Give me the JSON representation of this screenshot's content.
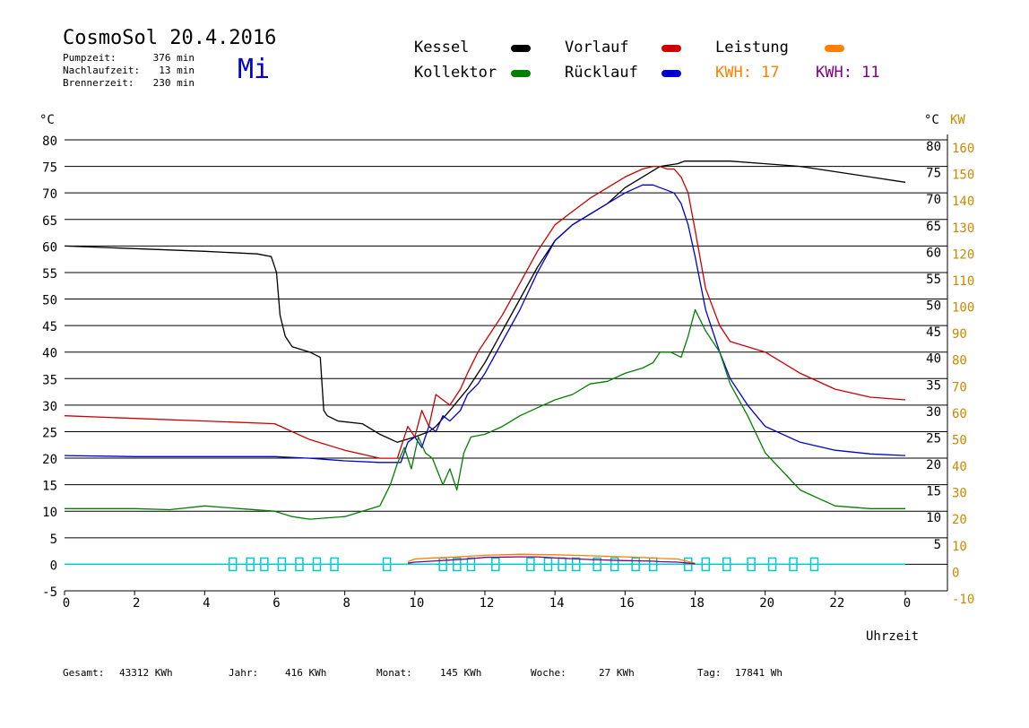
{
  "header": {
    "title": "CosmoSol 20.4.2016",
    "weekday": "Mi",
    "stats": [
      {
        "label": "Pumpzeit:",
        "value": "376 min"
      },
      {
        "label": "Nachlaufzeit:",
        "value": "13 min"
      },
      {
        "label": "Brennerzeit:",
        "value": "230 min"
      }
    ]
  },
  "legend": {
    "kessel": "Kessel",
    "kollektor": "Kollektor",
    "vorlauf": "Vorlauf",
    "ruecklauf": "Rücklauf",
    "leistung": "Leistung",
    "kwh1": "KWH: 17",
    "kwh2": "KWH: 11"
  },
  "footer": [
    {
      "label": "Gesamt:",
      "value": "43312 KWh"
    },
    {
      "label": "Jahr:",
      "value": "416 KWh"
    },
    {
      "label": "Monat:",
      "value": "145 KWh"
    },
    {
      "label": "Woche:",
      "value": "27 KWh"
    },
    {
      "label": "Tag:",
      "value": "17841 Wh"
    }
  ],
  "colors": {
    "kessel": "#000000",
    "kollektor": "#008000",
    "vorlauf": "#cc0000",
    "ruecklauf": "#0000cc",
    "leistung": "#ff8000",
    "kwh2": "#800080",
    "pump": "#00cccc",
    "kw_axis": "#cc8800"
  },
  "chart_data": {
    "type": "line",
    "xlabel": "Uhrzeit",
    "ylabel_left": "°C",
    "ylabel_right_c": "°C",
    "ylabel_right_kw": "KW",
    "xlim": [
      0,
      24
    ],
    "ylim": [
      -5,
      80
    ],
    "x_ticks": [
      "0",
      "2",
      "4",
      "6",
      "8",
      "10",
      "12",
      "14",
      "16",
      "18",
      "20",
      "22",
      "0"
    ],
    "y_ticks": [
      -5,
      0,
      5,
      10,
      15,
      20,
      25,
      30,
      35,
      40,
      45,
      50,
      55,
      60,
      65,
      70,
      75,
      80
    ],
    "right_c_ticks": [
      "5",
      "10",
      "15",
      "20",
      "25",
      "30",
      "35",
      "40",
      "45",
      "50",
      "55",
      "60",
      "65",
      "70",
      "75",
      "80"
    ],
    "right_kw_ticks": [
      "-10",
      "0",
      "10",
      "20",
      "30",
      "40",
      "50",
      "60",
      "70",
      "80",
      "90",
      "100",
      "110",
      "120",
      "130",
      "140",
      "150",
      "160"
    ],
    "grid": true,
    "series": [
      {
        "name": "Kessel",
        "key": "kessel",
        "x": [
          0,
          2,
          4,
          5.5,
          5.9,
          6.05,
          6.15,
          6.3,
          6.5,
          7,
          7.3,
          7.4,
          7.5,
          7.8,
          8.5,
          9,
          9.5,
          10,
          10.4,
          10.6,
          11,
          11.5,
          12,
          12.5,
          13,
          13.5,
          14,
          14.5,
          15,
          15.5,
          16,
          16.5,
          17,
          17.5,
          17.7,
          18,
          19,
          20,
          21,
          22,
          23,
          24
        ],
        "y": [
          60,
          59.5,
          59,
          58.5,
          58,
          55,
          47,
          43,
          41,
          40,
          39,
          29,
          28,
          27,
          26.5,
          24.5,
          23,
          24,
          25,
          26,
          29,
          33,
          38,
          44,
          50,
          56,
          61,
          64,
          66,
          68,
          71,
          73,
          75,
          75.5,
          76,
          76,
          76,
          75.5,
          75,
          74,
          73,
          72
        ]
      },
      {
        "name": "Vorlauf",
        "key": "vorlauf",
        "x": [
          0,
          2,
          4,
          6,
          6.5,
          7,
          8,
          9,
          9.5,
          9.8,
          10,
          10.2,
          10.4,
          10.6,
          10.8,
          11,
          11.3,
          11.5,
          11.8,
          12,
          12.5,
          13,
          13.5,
          14,
          14.5,
          15,
          15.5,
          16,
          16.5,
          16.8,
          17,
          17.2,
          17.4,
          17.6,
          17.8,
          18,
          18.3,
          18.7,
          19,
          20,
          21,
          22,
          23,
          24
        ],
        "y": [
          28,
          27.5,
          27,
          26.5,
          25,
          23.5,
          21.5,
          20,
          20,
          26,
          24,
          29,
          26,
          32,
          31,
          30,
          33,
          36,
          40,
          42,
          47,
          53,
          59,
          64,
          66.5,
          69,
          71,
          73,
          74.5,
          75,
          75,
          74.5,
          74.5,
          73,
          70,
          63,
          52,
          45,
          42,
          40,
          36,
          33,
          31.5,
          31
        ]
      },
      {
        "name": "Rücklauf",
        "key": "ruecklauf",
        "x": [
          0,
          2,
          4,
          6,
          7,
          8,
          9,
          9.6,
          9.8,
          10,
          10.2,
          10.4,
          10.6,
          10.8,
          11,
          11.3,
          11.5,
          11.8,
          12,
          12.5,
          13,
          13.5,
          14,
          14.5,
          15,
          15.5,
          16,
          16.5,
          16.8,
          17,
          17.2,
          17.4,
          17.6,
          17.8,
          18,
          18.3,
          18.7,
          19,
          19.5,
          20,
          21,
          22,
          23,
          24
        ],
        "y": [
          20.5,
          20.3,
          20.3,
          20.3,
          20,
          19.5,
          19.2,
          19.2,
          23,
          24,
          22,
          26,
          25,
          28,
          27,
          29,
          32,
          34,
          36,
          42,
          48,
          55,
          61,
          64,
          66,
          68,
          70,
          71.5,
          71.5,
          71,
          70.5,
          70,
          68,
          64,
          58,
          48,
          40,
          35,
          30,
          26,
          23,
          21.5,
          20.8,
          20.5
        ]
      },
      {
        "name": "Kollektor",
        "key": "kollektor",
        "x": [
          0,
          2,
          3,
          4,
          5,
          6,
          6.5,
          7,
          8,
          8.5,
          9,
          9.3,
          9.5,
          9.7,
          9.9,
          10.1,
          10.3,
          10.5,
          10.8,
          11,
          11.2,
          11.4,
          11.6,
          12,
          12.5,
          13,
          13.5,
          14,
          14.5,
          15,
          15.5,
          16,
          16.5,
          16.8,
          17,
          17.3,
          17.6,
          17.8,
          18,
          18.3,
          18.7,
          19,
          19.5,
          20,
          21,
          22,
          23,
          24
        ],
        "y": [
          10.5,
          10.5,
          10.3,
          11,
          10.5,
          10,
          9,
          8.5,
          9,
          10,
          11,
          15,
          19,
          22,
          18,
          24,
          21,
          20,
          15,
          18,
          14,
          21,
          24,
          24.5,
          26,
          28,
          29.5,
          31,
          32,
          34,
          34.5,
          36,
          37,
          38,
          40,
          40,
          39,
          43,
          48,
          44,
          40,
          34,
          28,
          21,
          14,
          11,
          10.5,
          10.5
        ]
      },
      {
        "name": "Leistung",
        "key": "leistung",
        "x": [
          9.8,
          10,
          10.5,
          11,
          11.5,
          12,
          13,
          14,
          15,
          16,
          16.8,
          17,
          17.5,
          18
        ],
        "y": [
          0.5,
          1,
          1.2,
          1.3,
          1.5,
          1.7,
          1.9,
          1.8,
          1.6,
          1.4,
          1.2,
          1.1,
          1.0,
          0.2
        ]
      },
      {
        "name": "KWH 11",
        "key": "kwh2",
        "x": [
          9.8,
          10,
          10.5,
          11,
          11.5,
          12,
          13,
          13.5,
          14,
          15,
          16,
          16.8,
          17,
          17.5,
          18
        ],
        "y": [
          0.2,
          0.4,
          0.6,
          0.8,
          1,
          1.3,
          1.4,
          1.4,
          1.2,
          0.9,
          0.7,
          0.6,
          0.5,
          0.4,
          0.1
        ]
      }
    ]
  }
}
